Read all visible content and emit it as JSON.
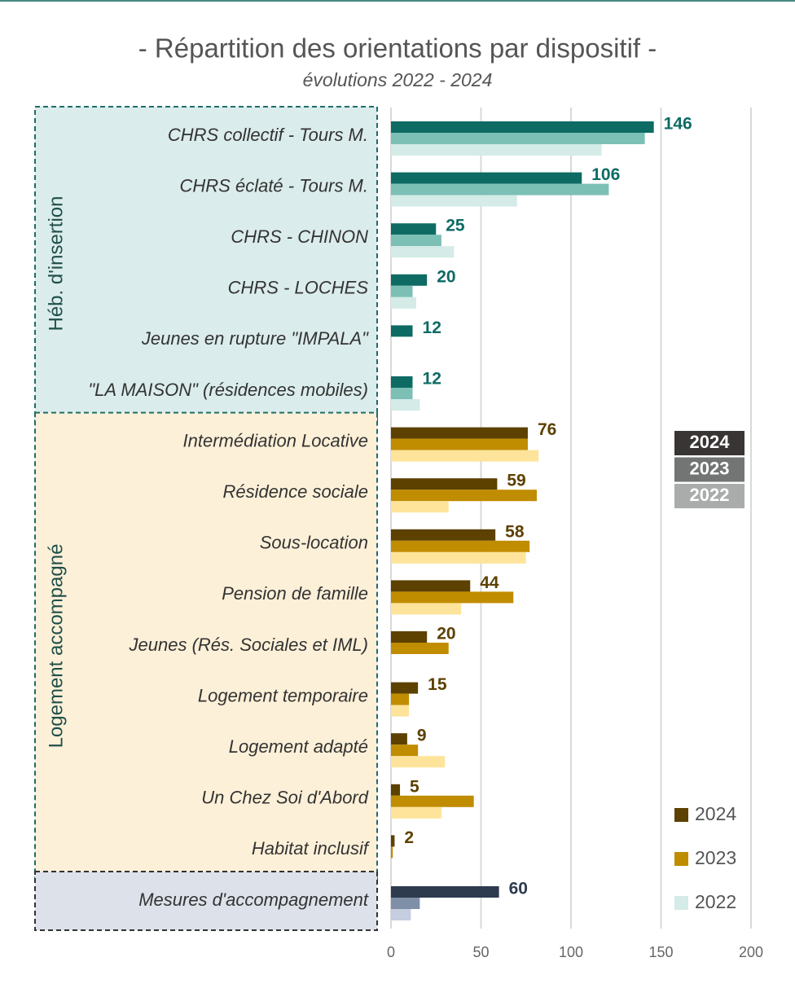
{
  "chart_data": {
    "type": "bar",
    "orientation": "horizontal",
    "title": "- Répartition des orientations par dispositif -",
    "subtitle": "évolutions 2022 - 2024",
    "xlim": [
      0,
      200
    ],
    "xticks": [
      0,
      50,
      100,
      150,
      200
    ],
    "grid": true,
    "groups": [
      {
        "label": "Héb. d'insertion",
        "fill": "#daeceb",
        "border": "#1f6e67",
        "categories": [
          "CHRS collectif - Tours M.",
          "CHRS éclaté  - Tours M.",
          "CHRS -  CHINON",
          "CHRS - LOCHES",
          "Jeunes en rupture \"IMPALA\"",
          "\"LA MAISON\" (résidences mobiles)"
        ],
        "series": [
          {
            "name": "2024",
            "color": "#0e6b63",
            "values": [
              146,
              106,
              25,
              20,
              12,
              12
            ]
          },
          {
            "name": "2023",
            "color": "#7bbfb5",
            "values": [
              141,
              121,
              28,
              12,
              null,
              12
            ]
          },
          {
            "name": "2022",
            "color": "#d4ebe7",
            "values": [
              117,
              70,
              35,
              14,
              null,
              16
            ]
          }
        ]
      },
      {
        "label": "Logement accompagné",
        "fill": "#fdf0d8",
        "border": "#1f6e67",
        "categories": [
          "Intermédiation Locative",
          "Résidence sociale",
          "Sous-location",
          "Pension de famille",
          "Jeunes (Rés. Sociales et IML)",
          "Logement temporaire",
          "Logement adapté",
          "Un Chez Soi d'Abord",
          "Habitat inclusif"
        ],
        "series": [
          {
            "name": "2024",
            "color": "#5c4100",
            "values": [
              76,
              59,
              58,
              44,
              20,
              15,
              9,
              5,
              2
            ]
          },
          {
            "name": "2023",
            "color": "#c08c00",
            "values": [
              76,
              81,
              77,
              68,
              32,
              10,
              15,
              46,
              1
            ]
          },
          {
            "name": "2022",
            "color": "#fde49a",
            "values": [
              82,
              32,
              75,
              39,
              null,
              10,
              30,
              28,
              null
            ]
          }
        ]
      },
      {
        "label": null,
        "fill": "#dde1ea",
        "border": "#333333",
        "categories": [
          "Mesures d'accompagnement"
        ],
        "series": [
          {
            "name": "2024",
            "color": "#2e3a4e",
            "values": [
              60
            ]
          },
          {
            "name": "2023",
            "color": "#7f8fa8",
            "values": [
              16
            ]
          },
          {
            "name": "2022",
            "color": "#c5cde0",
            "values": [
              11
            ]
          }
        ]
      }
    ],
    "legend_boxed": [
      {
        "name": "2024",
        "color": "#3a3535"
      },
      {
        "name": "2023",
        "color": "#737575"
      },
      {
        "name": "2022",
        "color": "#a9acab"
      }
    ],
    "legend": [
      {
        "name": "2024",
        "color": "#5c4100"
      },
      {
        "name": "2023",
        "color": "#c08c00"
      },
      {
        "name": "2022",
        "color": "#d4ebe7"
      }
    ]
  }
}
